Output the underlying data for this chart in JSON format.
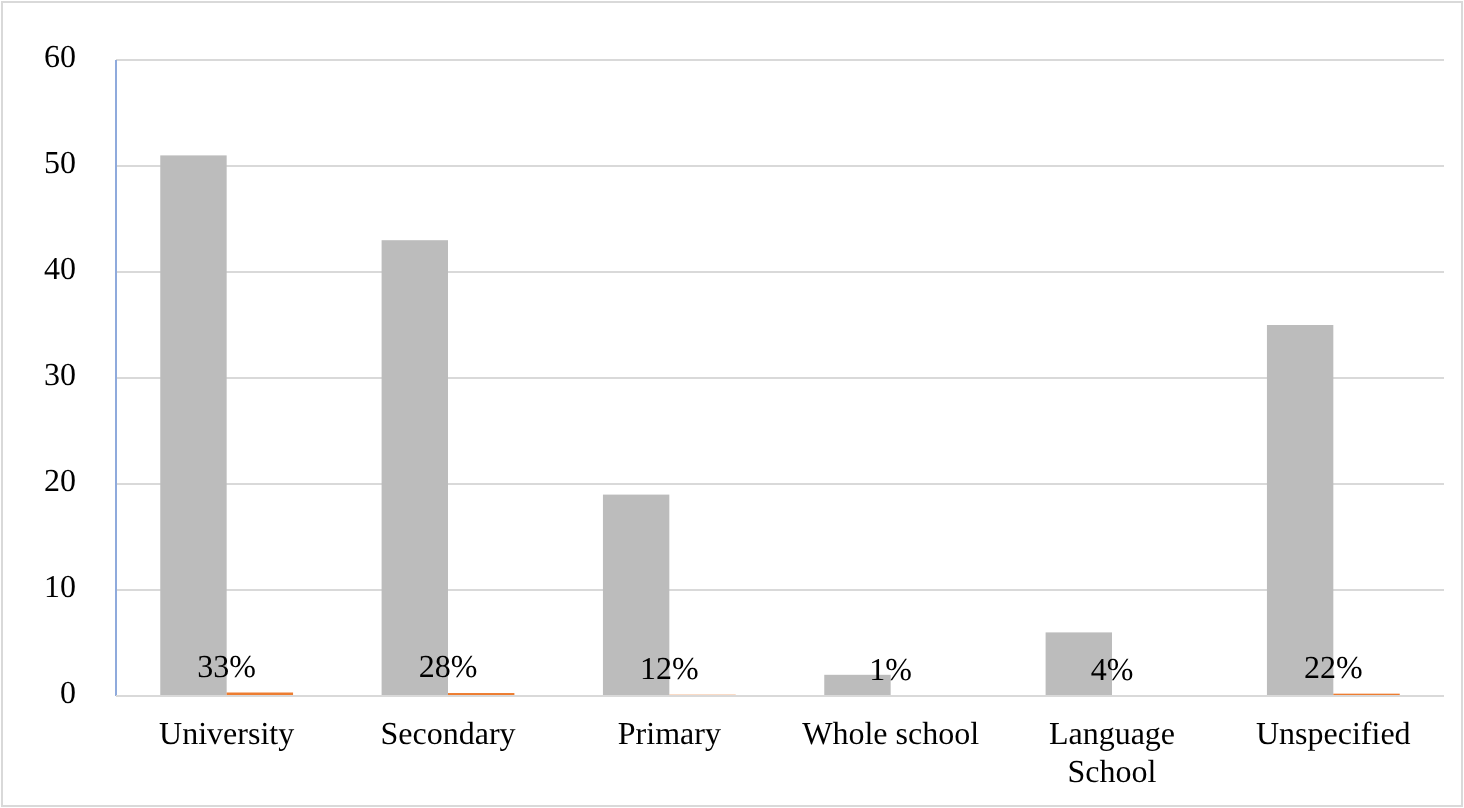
{
  "chart_data": {
    "type": "bar",
    "categories": [
      "University",
      "Secondary",
      "Primary",
      "Whole school",
      "Language School",
      "Unspecified"
    ],
    "series": [
      {
        "color": "#bcbcbc",
        "values": [
          51,
          43,
          19,
          2,
          6,
          35
        ]
      },
      {
        "color": "#ed7d31",
        "values": [
          0.33,
          0.28,
          0.12,
          0.01,
          0.04,
          0.22
        ],
        "value_labels": [
          "33%",
          "28%",
          "12%",
          "1%",
          "4%",
          "22%"
        ]
      }
    ],
    "ylim": [
      0,
      60
    ],
    "yticks": [
      0,
      10,
      20,
      30,
      40,
      50,
      60
    ],
    "grid": "y"
  }
}
